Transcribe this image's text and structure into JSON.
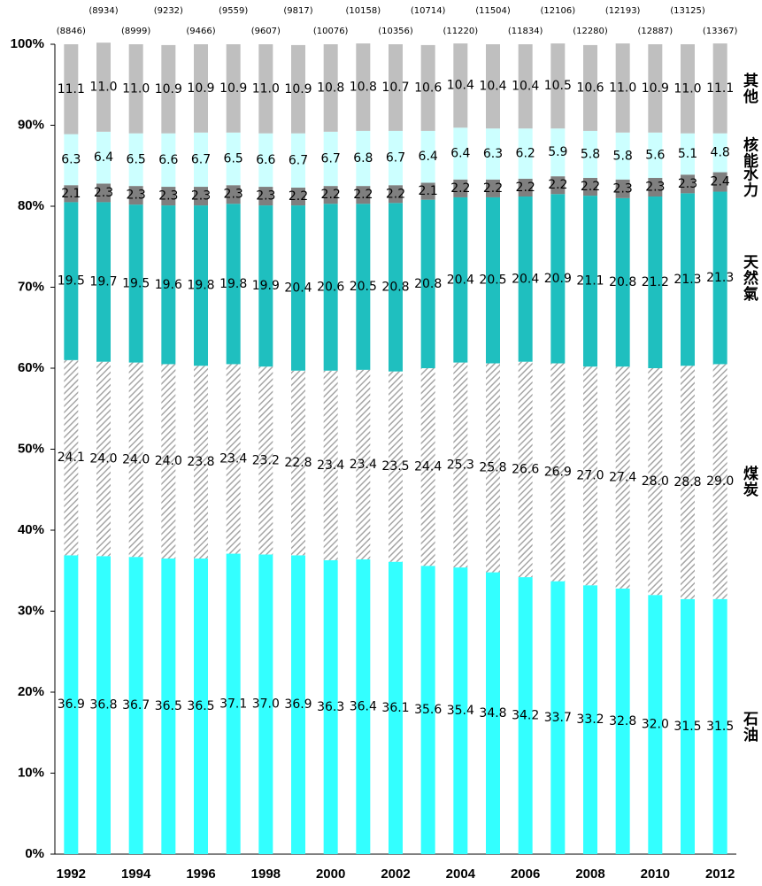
{
  "chart_data": {
    "type": "stacked-bar",
    "categories": [
      "1992",
      null,
      "1994",
      null,
      "1996",
      null,
      "1998",
      null,
      "2000",
      null,
      "2002",
      null,
      "2004",
      null,
      "2006",
      null,
      "2008",
      null,
      "2010",
      null,
      "2012"
    ],
    "annotations": [
      "(8846)",
      "(8934)",
      "(8999)",
      "(9232)",
      "(9466)",
      "(9559)",
      "(9607)",
      "(9817)",
      "(10076)",
      "(10158)",
      "(10356)",
      "(10714)",
      "(11220)",
      "(11504)",
      "(11834)",
      "(12106)",
      "(12280)",
      "(12193)",
      "(12887)",
      "(13125)",
      "(13367)"
    ],
    "ylim": [
      0,
      100
    ],
    "yticks": [
      {
        "value": 0,
        "label": "0%"
      },
      {
        "value": 10,
        "label": "10%"
      },
      {
        "value": 20,
        "label": "20%"
      },
      {
        "value": 30,
        "label": "30%"
      },
      {
        "value": 40,
        "label": "40%"
      },
      {
        "value": 50,
        "label": "50%"
      },
      {
        "value": 60,
        "label": "60%"
      },
      {
        "value": 70,
        "label": "70%"
      },
      {
        "value": 80,
        "label": "80%"
      },
      {
        "value": 90,
        "label": "90%"
      },
      {
        "value": 100,
        "label": "100%"
      }
    ],
    "series": [
      {
        "name": "石油",
        "color": "#33ffff",
        "values": [
          36.9,
          36.8,
          36.7,
          36.5,
          36.5,
          37.1,
          37.0,
          36.9,
          36.3,
          36.4,
          36.1,
          35.6,
          35.4,
          34.8,
          34.2,
          33.7,
          33.2,
          32.8,
          32.0,
          31.5,
          31.5
        ],
        "value_labels": [
          "36.9",
          "36.8",
          "36.7",
          "36.5",
          "36.5",
          "37.1",
          "37.0",
          "36.9",
          "36.3",
          "36.4",
          "36.1",
          "35.6",
          "35.4",
          "34.8",
          "34.2",
          "33.7",
          "33.2",
          "32.8",
          "32.0",
          "31.5",
          "31.5"
        ]
      },
      {
        "name": "煤炭",
        "color": "#a6a6a6",
        "pattern": "hatch",
        "values": [
          24.1,
          24.0,
          24.0,
          24.0,
          23.8,
          23.4,
          23.2,
          22.8,
          23.4,
          23.4,
          23.5,
          24.4,
          25.3,
          25.8,
          26.6,
          26.9,
          27.0,
          27.4,
          28.0,
          28.8,
          29.0
        ],
        "value_labels": [
          "24.1",
          "24.0",
          "24.0",
          "24.0",
          "23.8",
          "23.4",
          "23.2",
          "22.8",
          "23.4",
          "23.4",
          "23.5",
          "24.4",
          "25.3",
          "25.8",
          "26.6",
          "26.9",
          "27.0",
          "27.4",
          "28.0",
          "28.8",
          "29.0"
        ]
      },
      {
        "name": "天然氣",
        "color": "#1fbfbf",
        "values": [
          19.5,
          19.7,
          19.5,
          19.6,
          19.8,
          19.8,
          19.9,
          20.4,
          20.6,
          20.5,
          20.8,
          20.8,
          20.4,
          20.5,
          20.4,
          20.9,
          21.1,
          20.8,
          21.2,
          21.3,
          21.3
        ],
        "value_labels": [
          "19.5",
          "19.7",
          "19.5",
          "19.6",
          "19.8",
          "19.8",
          "19.9",
          "20.4",
          "20.6",
          "20.5",
          "20.8",
          "20.8",
          "20.4",
          "20.5",
          "20.4",
          "20.9",
          "21.1",
          "20.8",
          "21.2",
          "21.3",
          "21.3"
        ]
      },
      {
        "name": "水力",
        "color": "#7f7f7f",
        "values": [
          2.1,
          2.3,
          2.3,
          2.3,
          2.3,
          2.3,
          2.3,
          2.2,
          2.2,
          2.2,
          2.2,
          2.1,
          2.2,
          2.2,
          2.2,
          2.2,
          2.2,
          2.3,
          2.3,
          2.3,
          2.4
        ],
        "value_labels": [
          "2.1",
          "2.3",
          "2.3",
          "2.3",
          "2.3",
          "2.3",
          "2.3",
          "2.2",
          "2.2",
          "2.2",
          "2.2",
          "2.1",
          "2.2",
          "2.2",
          "2.2",
          "2.2",
          "2.2",
          "2.3",
          "2.3",
          "2.3",
          "2.4"
        ]
      },
      {
        "name": "核能",
        "color": "#ccffff",
        "values": [
          6.3,
          6.4,
          6.5,
          6.6,
          6.7,
          6.5,
          6.6,
          6.7,
          6.7,
          6.8,
          6.7,
          6.4,
          6.4,
          6.3,
          6.2,
          5.9,
          5.8,
          5.8,
          5.6,
          5.1,
          4.8
        ],
        "value_labels": [
          "6.3",
          "6.4",
          "6.5",
          "6.6",
          "6.7",
          "6.5",
          "6.6",
          "6.7",
          "6.7",
          "6.8",
          "6.7",
          "6.4",
          "6.4",
          "6.3",
          "6.2",
          "5.9",
          "5.8",
          "5.8",
          "5.6",
          "5.1",
          "4.8"
        ]
      },
      {
        "name": "其他",
        "color": "#bfbfbf",
        "values": [
          11.1,
          11.0,
          11.0,
          10.9,
          10.9,
          10.9,
          11.0,
          10.9,
          10.8,
          10.8,
          10.7,
          10.6,
          10.4,
          10.4,
          10.4,
          10.5,
          10.6,
          11.0,
          10.9,
          11.0,
          11.1
        ],
        "value_labels": [
          "11.1",
          "11.0",
          "11.0",
          "10.9",
          "10.9",
          "10.9",
          "11.0",
          "10.9",
          "10.8",
          "10.8",
          "10.7",
          "10.6",
          "10.4",
          "10.4",
          "10.4",
          "10.5",
          "10.6",
          "11.0",
          "10.9",
          "11.0",
          "11.1"
        ]
      }
    ]
  }
}
